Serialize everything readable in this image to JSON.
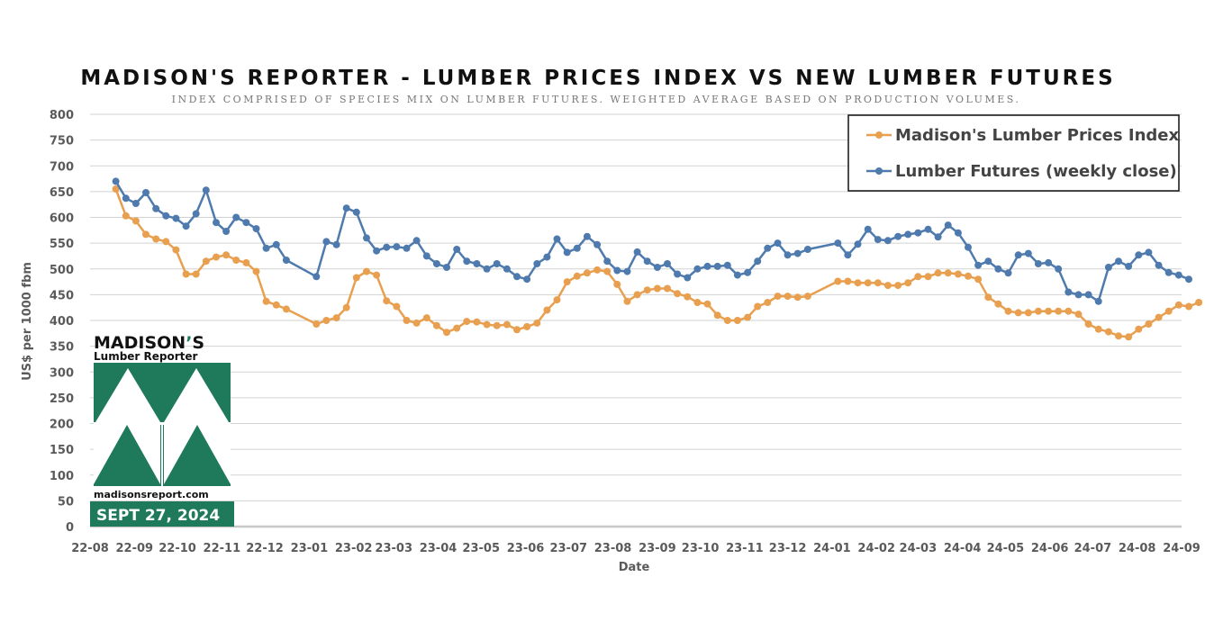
{
  "chart_data": {
    "type": "line",
    "title": "MADISON'S REPORTER - LUMBER PRICES INDEX VS NEW LUMBER FUTURES",
    "subtitle": "INDEX COMPRISED OF SPECIES MIX ON LUMBER FUTURES. WEIGHTED AVERAGE BASED ON PRODUCTION VOLUMES.",
    "xlabel": "Date",
    "ylabel": "US$ per 1000 fbm",
    "ylim": [
      0,
      800
    ],
    "yticks": [
      "800",
      "750",
      "700",
      "650",
      "600",
      "550",
      "500",
      "450",
      "400",
      "350",
      "300",
      "250",
      "200",
      "150",
      "100",
      "50",
      "0"
    ],
    "xticks": [
      "22-08",
      "22-09",
      "22-10",
      "22-11",
      "22-12",
      "23-01",
      "23-02",
      "23-03",
      "23-04",
      "23-05",
      "23-06",
      "23-07",
      "23-08",
      "23-09",
      "23-10",
      "23-11",
      "23-12",
      "24-01",
      "24-02",
      "24-03",
      "24-04",
      "24-05",
      "24-06",
      "24-07",
      "24-08",
      "24-09"
    ],
    "grid": true,
    "legend_position": "top-right",
    "series": [
      {
        "name": "Madison's Lumber Prices Index",
        "color": "#E8A050",
        "points": [
          [
            "2022-08-19",
            655
          ],
          [
            "2022-08-26",
            603
          ],
          [
            "2022-09-02",
            593
          ],
          [
            "2022-09-09",
            567
          ],
          [
            "2022-09-16",
            558
          ],
          [
            "2022-09-23",
            553
          ],
          [
            "2022-09-30",
            537
          ],
          [
            "2022-10-07",
            490
          ],
          [
            "2022-10-14",
            490
          ],
          [
            "2022-10-21",
            515
          ],
          [
            "2022-10-28",
            523
          ],
          [
            "2022-11-04",
            527
          ],
          [
            "2022-11-11",
            517
          ],
          [
            "2022-11-18",
            512
          ],
          [
            "2022-11-25",
            495
          ],
          [
            "2022-12-02",
            437
          ],
          [
            "2022-12-09",
            430
          ],
          [
            "2022-12-16",
            422
          ],
          [
            "2023-01-06",
            393
          ],
          [
            "2023-01-13",
            400
          ],
          [
            "2023-01-20",
            405
          ],
          [
            "2023-01-27",
            425
          ],
          [
            "2023-02-03",
            483
          ],
          [
            "2023-02-10",
            495
          ],
          [
            "2023-02-17",
            488
          ],
          [
            "2023-02-24",
            438
          ],
          [
            "2023-03-03",
            427
          ],
          [
            "2023-03-10",
            400
          ],
          [
            "2023-03-17",
            395
          ],
          [
            "2023-03-24",
            405
          ],
          [
            "2023-03-31",
            390
          ],
          [
            "2023-04-07",
            377
          ],
          [
            "2023-04-14",
            385
          ],
          [
            "2023-04-21",
            398
          ],
          [
            "2023-04-28",
            397
          ],
          [
            "2023-05-05",
            392
          ],
          [
            "2023-05-12",
            390
          ],
          [
            "2023-05-19",
            392
          ],
          [
            "2023-05-26",
            382
          ],
          [
            "2023-06-02",
            388
          ],
          [
            "2023-06-09",
            395
          ],
          [
            "2023-06-16",
            420
          ],
          [
            "2023-06-23",
            440
          ],
          [
            "2023-06-30",
            475
          ],
          [
            "2023-07-07",
            486
          ],
          [
            "2023-07-14",
            492
          ],
          [
            "2023-07-21",
            498
          ],
          [
            "2023-07-28",
            495
          ],
          [
            "2023-08-04",
            470
          ],
          [
            "2023-08-11",
            437
          ],
          [
            "2023-08-18",
            450
          ],
          [
            "2023-08-25",
            459
          ],
          [
            "2023-09-01",
            462
          ],
          [
            "2023-09-08",
            462
          ],
          [
            "2023-09-15",
            452
          ],
          [
            "2023-09-22",
            446
          ],
          [
            "2023-09-29",
            435
          ],
          [
            "2023-10-06",
            432
          ],
          [
            "2023-10-13",
            410
          ],
          [
            "2023-10-20",
            400
          ],
          [
            "2023-10-27",
            400
          ],
          [
            "2023-11-03",
            406
          ],
          [
            "2023-11-10",
            427
          ],
          [
            "2023-11-17",
            435
          ],
          [
            "2023-11-24",
            447
          ],
          [
            "2023-12-01",
            447
          ],
          [
            "2023-12-08",
            445
          ],
          [
            "2023-12-15",
            447
          ],
          [
            "2024-01-05",
            476
          ],
          [
            "2024-01-12",
            476
          ],
          [
            "2024-01-19",
            473
          ],
          [
            "2024-01-26",
            473
          ],
          [
            "2024-02-02",
            473
          ],
          [
            "2024-02-09",
            468
          ],
          [
            "2024-02-16",
            468
          ],
          [
            "2024-02-23",
            473
          ],
          [
            "2024-03-01",
            485
          ],
          [
            "2024-03-08",
            485
          ],
          [
            "2024-03-15",
            492
          ],
          [
            "2024-03-22",
            492
          ],
          [
            "2024-03-29",
            490
          ],
          [
            "2024-04-05",
            486
          ],
          [
            "2024-04-12",
            480
          ],
          [
            "2024-04-19",
            445
          ],
          [
            "2024-04-26",
            432
          ],
          [
            "2024-05-03",
            418
          ],
          [
            "2024-05-10",
            415
          ],
          [
            "2024-05-17",
            415
          ],
          [
            "2024-05-24",
            418
          ],
          [
            "2024-05-31",
            418
          ],
          [
            "2024-06-07",
            418
          ],
          [
            "2024-06-14",
            418
          ],
          [
            "2024-06-21",
            412
          ],
          [
            "2024-06-28",
            393
          ],
          [
            "2024-07-05",
            383
          ],
          [
            "2024-07-12",
            378
          ],
          [
            "2024-07-19",
            370
          ],
          [
            "2024-07-26",
            368
          ],
          [
            "2024-08-02",
            383
          ],
          [
            "2024-08-09",
            393
          ],
          [
            "2024-08-16",
            406
          ],
          [
            "2024-08-23",
            418
          ],
          [
            "2024-08-30",
            430
          ],
          [
            "2024-09-06",
            427
          ],
          [
            "2024-09-13",
            435
          ]
        ]
      },
      {
        "name": "Lumber Futures (weekly close)",
        "color": "#4F7AAE",
        "points": [
          [
            "2022-08-19",
            670
          ],
          [
            "2022-08-26",
            637
          ],
          [
            "2022-09-02",
            627
          ],
          [
            "2022-09-09",
            648
          ],
          [
            "2022-09-16",
            617
          ],
          [
            "2022-09-23",
            603
          ],
          [
            "2022-09-30",
            598
          ],
          [
            "2022-10-07",
            583
          ],
          [
            "2022-10-14",
            607
          ],
          [
            "2022-10-21",
            653
          ],
          [
            "2022-10-28",
            590
          ],
          [
            "2022-11-04",
            573
          ],
          [
            "2022-11-11",
            600
          ],
          [
            "2022-11-18",
            590
          ],
          [
            "2022-11-25",
            578
          ],
          [
            "2022-12-02",
            540
          ],
          [
            "2022-12-09",
            547
          ],
          [
            "2022-12-16",
            517
          ],
          [
            "2023-01-06",
            485
          ],
          [
            "2023-01-13",
            553
          ],
          [
            "2023-01-20",
            547
          ],
          [
            "2023-01-27",
            618
          ],
          [
            "2023-02-03",
            610
          ],
          [
            "2023-02-10",
            560
          ],
          [
            "2023-02-17",
            535
          ],
          [
            "2023-02-24",
            542
          ],
          [
            "2023-03-03",
            543
          ],
          [
            "2023-03-10",
            540
          ],
          [
            "2023-03-17",
            555
          ],
          [
            "2023-03-24",
            525
          ],
          [
            "2023-03-31",
            510
          ],
          [
            "2023-04-07",
            503
          ],
          [
            "2023-04-14",
            538
          ],
          [
            "2023-04-21",
            515
          ],
          [
            "2023-04-28",
            510
          ],
          [
            "2023-05-05",
            500
          ],
          [
            "2023-05-12",
            510
          ],
          [
            "2023-05-19",
            500
          ],
          [
            "2023-05-26",
            485
          ],
          [
            "2023-06-02",
            480
          ],
          [
            "2023-06-09",
            510
          ],
          [
            "2023-06-16",
            523
          ],
          [
            "2023-06-23",
            558
          ],
          [
            "2023-06-30",
            532
          ],
          [
            "2023-07-07",
            540
          ],
          [
            "2023-07-14",
            563
          ],
          [
            "2023-07-21",
            547
          ],
          [
            "2023-07-28",
            515
          ],
          [
            "2023-08-04",
            497
          ],
          [
            "2023-08-11",
            495
          ],
          [
            "2023-08-18",
            533
          ],
          [
            "2023-08-25",
            515
          ],
          [
            "2023-09-01",
            503
          ],
          [
            "2023-09-08",
            510
          ],
          [
            "2023-09-15",
            490
          ],
          [
            "2023-09-22",
            483
          ],
          [
            "2023-09-29",
            500
          ],
          [
            "2023-10-06",
            505
          ],
          [
            "2023-10-13",
            505
          ],
          [
            "2023-10-20",
            507
          ],
          [
            "2023-10-27",
            488
          ],
          [
            "2023-11-03",
            493
          ],
          [
            "2023-11-10",
            515
          ],
          [
            "2023-11-17",
            540
          ],
          [
            "2023-11-24",
            550
          ],
          [
            "2023-12-01",
            527
          ],
          [
            "2023-12-08",
            530
          ],
          [
            "2023-12-15",
            538
          ],
          [
            "2024-01-05",
            550
          ],
          [
            "2024-01-12",
            527
          ],
          [
            "2024-01-19",
            548
          ],
          [
            "2024-01-26",
            577
          ],
          [
            "2024-02-02",
            557
          ],
          [
            "2024-02-09",
            555
          ],
          [
            "2024-02-16",
            563
          ],
          [
            "2024-02-23",
            567
          ],
          [
            "2024-03-01",
            570
          ],
          [
            "2024-03-08",
            577
          ],
          [
            "2024-03-15",
            562
          ],
          [
            "2024-03-22",
            585
          ],
          [
            "2024-03-29",
            570
          ],
          [
            "2024-04-05",
            542
          ],
          [
            "2024-04-12",
            507
          ],
          [
            "2024-04-19",
            515
          ],
          [
            "2024-04-26",
            500
          ],
          [
            "2024-05-03",
            492
          ],
          [
            "2024-05-10",
            527
          ],
          [
            "2024-05-17",
            530
          ],
          [
            "2024-05-24",
            510
          ],
          [
            "2024-05-31",
            512
          ],
          [
            "2024-06-07",
            500
          ],
          [
            "2024-06-14",
            455
          ],
          [
            "2024-06-21",
            450
          ],
          [
            "2024-06-28",
            450
          ],
          [
            "2024-07-05",
            437
          ],
          [
            "2024-07-12",
            503
          ],
          [
            "2024-07-19",
            515
          ],
          [
            "2024-07-26",
            505
          ],
          [
            "2024-08-02",
            527
          ],
          [
            "2024-08-09",
            532
          ],
          [
            "2024-08-16",
            507
          ],
          [
            "2024-08-23",
            493
          ],
          [
            "2024-08-30",
            488
          ],
          [
            "2024-09-06",
            480
          ]
        ]
      }
    ]
  },
  "logo": {
    "name_line1": "MADISON",
    "name_apostrophe": "’",
    "name_s": "S",
    "name_line2": "Lumber Reporter",
    "url": "madisonsreport.com",
    "date_badge": "SEPT 27, 2024",
    "brand_green": "#1E7A5A"
  }
}
